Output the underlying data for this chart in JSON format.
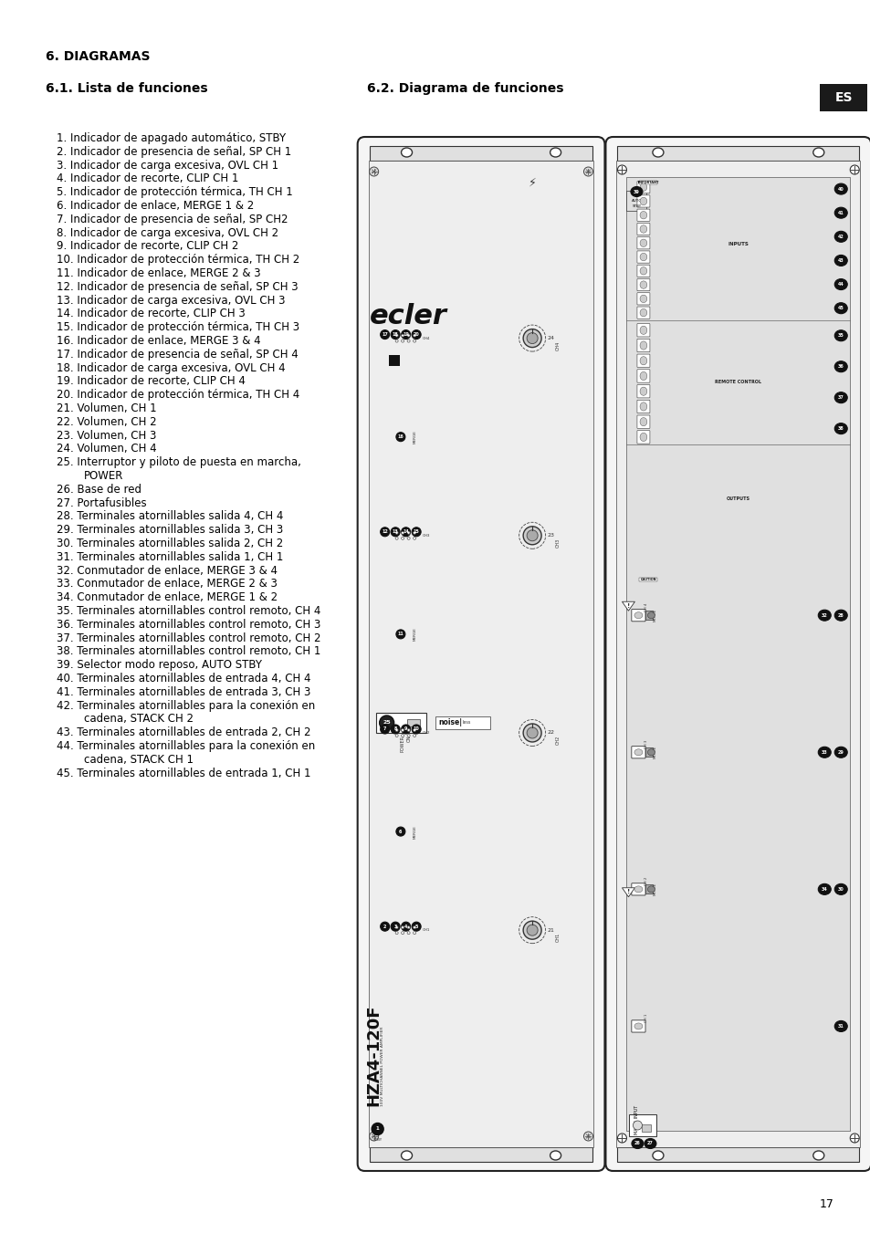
{
  "page_bg": "#ffffff",
  "title": "6. DIAGRAMAS",
  "section1": "6.1. Lista de funciones",
  "section2": "6.2. Diagrama de funciones",
  "es_label": "ES",
  "page_number": "17",
  "list_items": [
    "1. Indicador de apagado automático, STBY",
    "2. Indicador de presencia de señal, SP CH 1",
    "3. Indicador de carga excesiva, OVL CH 1",
    "4. Indicador de recorte, CLIP CH 1",
    "5. Indicador de protección térmica, TH CH 1",
    "6. Indicador de enlace, MERGE 1 & 2",
    "7. Indicador de presencia de señal, SP CH2",
    "8. Indicador de carga excesiva, OVL CH 2",
    "9. Indicador de recorte, CLIP CH 2",
    "10. Indicador de protección térmica, TH CH 2",
    "11. Indicador de enlace, MERGE 2 & 3",
    "12. Indicador de presencia de señal, SP CH 3",
    "13. Indicador de carga excesiva, OVL CH 3",
    "14. Indicador de recorte, CLIP CH 3",
    "15. Indicador de protección térmica, TH CH 3",
    "16. Indicador de enlace, MERGE 3 & 4",
    "17. Indicador de presencia de señal, SP CH 4",
    "18. Indicador de carga excesiva, OVL CH 4",
    "19. Indicador de recorte, CLIP CH 4",
    "20. Indicador de protección térmica, TH CH 4",
    "21. Volumen, CH 1",
    "22. Volumen, CH 2",
    "23. Volumen, CH 3",
    "24. Volumen, CH 4",
    "25. Interruptor y piloto de puesta en marcha,\n      POWER",
    "26. Base de red",
    "27. Portafusibles",
    "28. Terminales atornillables salida 4, CH 4",
    "29. Terminales atornillables salida 3, CH 3",
    "30. Terminales atornillables salida 2, CH 2",
    "31. Terminales atornillables salida 1, CH 1",
    "32. Conmutador de enlace, MERGE 3 & 4",
    "33. Conmutador de enlace, MERGE 2 & 3",
    "34. Conmutador de enlace, MERGE 1 & 2",
    "35. Terminales atornillables control remoto, CH 4",
    "36. Terminales atornillables control remoto, CH 3",
    "37. Terminales atornillables control remoto, CH 2",
    "38. Terminales atornillables control remoto, CH 1",
    "39. Selector modo reposo, AUTO STBY",
    "40. Terminales atornillables de entrada 4, CH 4",
    "41. Terminales atornillables de entrada 3, CH 3",
    "42. Terminales atornillables para la conexión en\n      cadena, STACK CH 2",
    "43. Terminales atornillables de entrada 2, CH 2",
    "44. Terminales atornillables para la conexión en\n      cadena, STACK CH 1",
    "45. Terminales atornillables de entrada 1, CH 1"
  ],
  "text_color": "#000000",
  "title_fontsize": 10,
  "section_fontsize": 10,
  "list_fontsize": 8.5,
  "list_indent": 0.052,
  "cont_indent": 0.085
}
